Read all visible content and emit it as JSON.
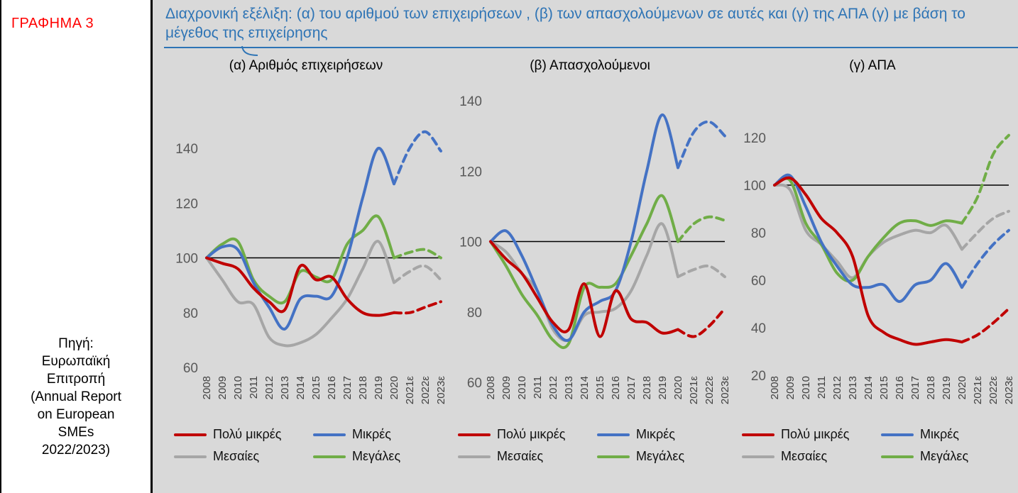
{
  "page": {
    "figure_label": "ΓΡΑΦΗΜΑ 3",
    "source_note": "Πηγή:\nΕυρωπαϊκή\nΕπιτροπή\n(Annual Report\non European\nSMEs\n2022/2023)",
    "title": "Διαχρονική εξέλιξη: (α) του αριθμού των επιχειρήσεων , (β) των απασχολούμενων σε αυτές και (γ) της ΑΠΑ (γ) με βάση το μέγεθος  της επιχείρησης"
  },
  "colors": {
    "title_blue": "#2E74B5",
    "panel_gray": "#D9D9D9",
    "figure_label_red": "#FF0000",
    "series_red": "#C00000",
    "series_blue": "#4472C4",
    "series_gray": "#A6A6A6",
    "series_green": "#70AD47",
    "baseline_black": "#000000"
  },
  "chart_data": [
    {
      "type": "line",
      "title": "(α) Αριθμός επιχειρήσεων",
      "x": [
        "2008",
        "2009",
        "2010",
        "2011",
        "2012",
        "2013",
        "2014",
        "2015",
        "2016",
        "2017",
        "2018",
        "2019",
        "2020",
        "2021ε",
        "2022ε",
        "2023ε"
      ],
      "ylim": [
        60,
        140
      ],
      "yticks": [
        60,
        80,
        100,
        120,
        140
      ],
      "baseline": 100,
      "grid": false,
      "legend_position": "bottom",
      "dashed_from_x": "2020",
      "series": [
        {
          "name": "Πολύ μικρές",
          "color": "#C00000",
          "values": [
            100,
            98,
            96,
            89,
            84,
            81,
            97,
            92,
            93,
            85,
            80,
            79,
            80,
            80,
            82,
            84
          ]
        },
        {
          "name": "Μικρές",
          "color": "#4472C4",
          "values": [
            100,
            104,
            103,
            91,
            82,
            74,
            85,
            86,
            86,
            100,
            122,
            140,
            127,
            140,
            146,
            139
          ]
        },
        {
          "name": "Μεσαίες",
          "color": "#A6A6A6",
          "values": [
            100,
            92,
            84,
            83,
            71,
            68,
            69,
            72,
            78,
            85,
            96,
            106,
            91,
            95,
            97,
            92
          ]
        },
        {
          "name": "Μεγάλες",
          "color": "#70AD47",
          "values": [
            100,
            105,
            106,
            92,
            86,
            84,
            95,
            93,
            92,
            105,
            110,
            115,
            100,
            102,
            103,
            100
          ]
        }
      ]
    },
    {
      "type": "line",
      "title": "(β) Απασχολούμενοι",
      "x": [
        "2008",
        "2009",
        "2010",
        "2011",
        "2012",
        "2013",
        "2014",
        "2015",
        "2016",
        "2017",
        "2018",
        "2019",
        "2020",
        "2021ε",
        "2022ε",
        "2023ε"
      ],
      "ylim": [
        60,
        140
      ],
      "yticks": [
        60,
        80,
        100,
        120,
        140
      ],
      "baseline": 100,
      "grid": false,
      "legend_position": "bottom",
      "dashed_from_x": "2020",
      "series": [
        {
          "name": "Πολύ μικρές",
          "color": "#C00000",
          "values": [
            100,
            95,
            91,
            84,
            77,
            75,
            88,
            73,
            86,
            78,
            77,
            74,
            75,
            73,
            76,
            81
          ]
        },
        {
          "name": "Μικρές",
          "color": "#4472C4",
          "values": [
            100,
            103,
            96,
            86,
            76,
            72,
            80,
            83,
            86,
            100,
            120,
            136,
            121,
            131,
            134,
            130
          ]
        },
        {
          "name": "Μεσαίες",
          "color": "#A6A6A6",
          "values": [
            100,
            97,
            91,
            86,
            75,
            72,
            79,
            80,
            81,
            86,
            96,
            105,
            90,
            92,
            93,
            90
          ]
        },
        {
          "name": "Μεγάλες",
          "color": "#70AD47",
          "values": [
            100,
            93,
            85,
            79,
            72,
            71,
            87,
            87,
            88,
            96,
            105,
            113,
            100,
            105,
            107,
            106
          ]
        }
      ]
    },
    {
      "type": "line",
      "title": "(γ) ΑΠΑ",
      "x": [
        "2008",
        "2009",
        "2010",
        "2011",
        "2012",
        "2013",
        "2014",
        "2015",
        "2016",
        "2017",
        "2018",
        "2019",
        "2020",
        "2021ε",
        "2022ε",
        "2023ε"
      ],
      "ylim": [
        20,
        120
      ],
      "yticks": [
        20,
        40,
        60,
        80,
        100,
        120
      ],
      "baseline": 100,
      "grid": false,
      "legend_position": "bottom",
      "dashed_from_x": "2020",
      "series": [
        {
          "name": "Πολύ μικρές",
          "color": "#C00000",
          "values": [
            100,
            103,
            96,
            86,
            80,
            70,
            45,
            38,
            35,
            33,
            34,
            35,
            34,
            37,
            42,
            48
          ]
        },
        {
          "name": "Μικρές",
          "color": "#4472C4",
          "values": [
            100,
            104,
            91,
            76,
            66,
            58,
            57,
            58,
            51,
            58,
            60,
            67,
            57,
            67,
            75,
            81
          ]
        },
        {
          "name": "Μεσαίες",
          "color": "#A6A6A6",
          "values": [
            100,
            98,
            81,
            75,
            68,
            61,
            70,
            76,
            79,
            81,
            80,
            83,
            73,
            80,
            86,
            89
          ]
        },
        {
          "name": "Μεγάλες",
          "color": "#70AD47",
          "values": [
            100,
            102,
            84,
            75,
            63,
            60,
            70,
            78,
            84,
            85,
            83,
            85,
            84,
            95,
            113,
            121
          ]
        }
      ]
    }
  ]
}
